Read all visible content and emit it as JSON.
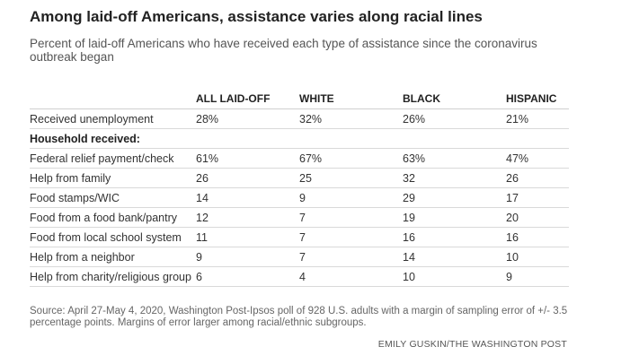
{
  "chart_data": {
    "type": "table",
    "title": "Among laid-off Americans, assistance varies along racial lines",
    "subtitle": "Percent of laid-off Americans who have received each type of assistance since the coronavirus outbreak began",
    "columns": [
      "ALL LAID-OFF",
      "WHITE",
      "BLACK",
      "HISPANIC"
    ],
    "rows": [
      {
        "label": "Received unemployment",
        "values": [
          "28%",
          "32%",
          "26%",
          "21%"
        ]
      },
      {
        "label": "Household received:",
        "section": true,
        "values": []
      },
      {
        "label": "Federal relief payment/check",
        "values": [
          "61%",
          "67%",
          "63%",
          "47%"
        ]
      },
      {
        "label": "Help from family",
        "values": [
          "26",
          "25",
          "32",
          "26"
        ]
      },
      {
        "label": "Food stamps/WIC",
        "values": [
          "14",
          "9",
          "29",
          "17"
        ]
      },
      {
        "label": "Food from a food bank/pantry",
        "values": [
          "12",
          "7",
          "19",
          "20"
        ]
      },
      {
        "label": "Food from local school system",
        "values": [
          "11",
          "7",
          "16",
          "16"
        ]
      },
      {
        "label": "Help from a neighbor",
        "values": [
          "9",
          "7",
          "14",
          "10"
        ]
      },
      {
        "label": "Help from charity/religious group",
        "values": [
          "6",
          "4",
          "10",
          "9"
        ]
      }
    ],
    "source": "Source: April 27-May 4, 2020, Washington Post-Ipsos poll of 928 U.S. adults with a margin of sampling error of +/- 3.5 percentage points. Margins of error larger among racial/ethnic subgroups.",
    "credit": "EMILY GUSKIN/THE WASHINGTON POST"
  }
}
